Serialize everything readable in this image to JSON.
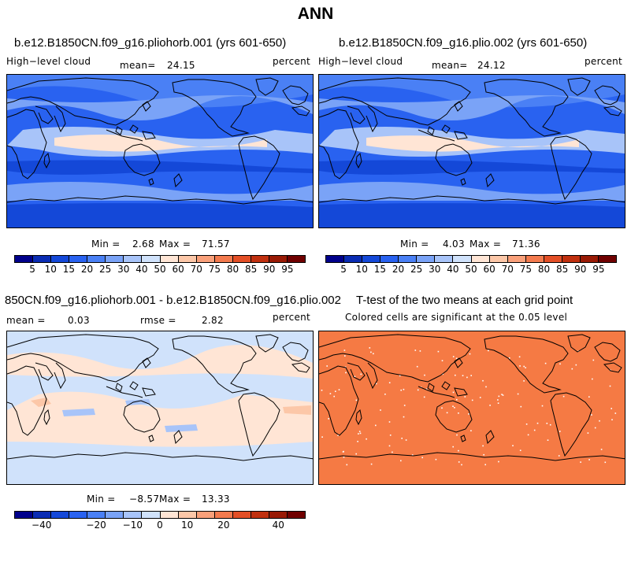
{
  "figure_title": "ANN",
  "variable_label": "High−level cloud",
  "units": "percent",
  "panel_a": {
    "title": "b.e12.B1850CN.f09_g16.pliohorb.001 (yrs 601-650)",
    "mean_label": "mean=",
    "mean_value": "24.15",
    "min_label": "Min =",
    "min_value": "2.68",
    "max_label": "Max =",
    "max_value": "71.57"
  },
  "panel_b": {
    "title": "b.e12.B1850CN.f09_g16.plio.002 (yrs 601-650)",
    "mean_label": "mean=",
    "mean_value": "24.12",
    "min_label": "Min =",
    "min_value": "4.03",
    "max_label": "Max =",
    "max_value": "71.36"
  },
  "panel_c": {
    "title": "850CN.f09_g16.pliohorb.001 - b.e12.B1850CN.f09_g16.plio.002",
    "mean_label": "mean =",
    "mean_value": "0.03",
    "rmse_label": "rmse =",
    "rmse_value": "2.82",
    "min_label": "Min =",
    "min_value": "−8.57",
    "max_label": "Max =",
    "max_value": "13.33"
  },
  "panel_d": {
    "title": "T-test of the two means at each grid point",
    "subtitle": "Colored cells are significant at the 0.05 level"
  },
  "colorbar_abs": {
    "colors": [
      "#00008b",
      "#0a2cb3",
      "#1448d8",
      "#2962f0",
      "#4a80f5",
      "#7aa3f7",
      "#a8c4f9",
      "#d0e2fb",
      "#ffe5d5",
      "#fcc7a8",
      "#f9a07a",
      "#f37a4e",
      "#e34f26",
      "#c0300f",
      "#991a05",
      "#700000"
    ],
    "labels": [
      "5",
      "10",
      "15",
      "20",
      "25",
      "30",
      "40",
      "50",
      "60",
      "70",
      "75",
      "80",
      "85",
      "90",
      "95"
    ]
  },
  "colorbar_diff": {
    "colors": [
      "#00008b",
      "#0a2cb3",
      "#1448d8",
      "#2962f0",
      "#4a80f5",
      "#7aa3f7",
      "#a8c4f9",
      "#d0e2fb",
      "#ffe5d5",
      "#fcc7a8",
      "#f9a07a",
      "#f37a4e",
      "#e34f26",
      "#c0300f",
      "#991a05",
      "#700000"
    ],
    "labels": [
      "−40",
      "−20",
      "−10",
      "0",
      "10",
      "20",
      "40"
    ]
  }
}
